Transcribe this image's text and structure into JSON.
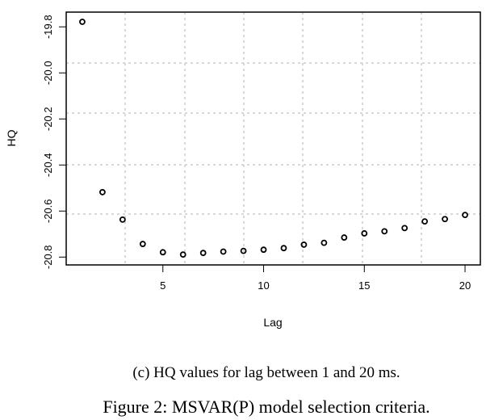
{
  "chart_data": {
    "type": "scatter",
    "xlabel": "Lag",
    "ylabel": "HQ",
    "xlim": [
      0.2,
      20.76
    ],
    "ylim": [
      -20.834,
      -19.736
    ],
    "xticks": [
      5,
      10,
      15,
      20
    ],
    "yticks": [
      -19.8,
      -20.0,
      -20.2,
      -20.4,
      -20.6,
      -20.8
    ],
    "ytick_labels": [
      "-19.8",
      "-20.0",
      "-20.2",
      "-20.4",
      "-20.6",
      "-20.8"
    ],
    "xtick_labels": [
      "5",
      "10",
      "15",
      "20"
    ],
    "grid": true,
    "marker": "open-circle",
    "x": [
      1,
      2,
      3,
      4,
      5,
      6,
      7,
      8,
      9,
      10,
      11,
      12,
      13,
      14,
      15,
      16,
      17,
      18,
      19,
      20
    ],
    "y": [
      -19.778,
      -20.518,
      -20.637,
      -20.743,
      -20.779,
      -20.789,
      -20.782,
      -20.776,
      -20.773,
      -20.768,
      -20.761,
      -20.746,
      -20.738,
      -20.715,
      -20.697,
      -20.688,
      -20.674,
      -20.645,
      -20.635,
      -20.617
    ]
  },
  "caption": {
    "subfigure": "(c) HQ values for lag between 1 and 20 ms.",
    "figure": "Figure 2: MSVAR(P) model selection criteria."
  }
}
